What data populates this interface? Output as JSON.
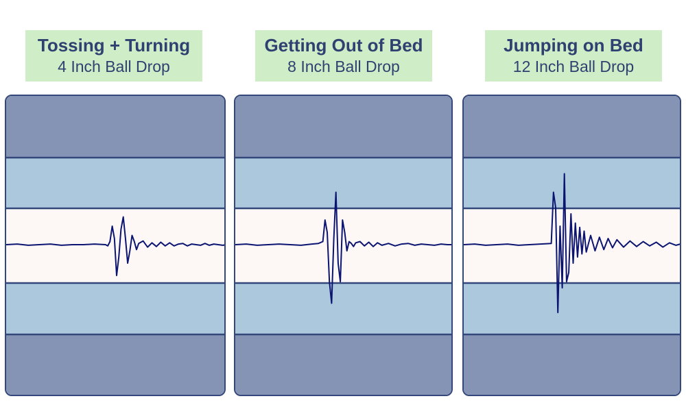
{
  "colors": {
    "outer_band": "#8593b5",
    "middle_band": "#abc8dd",
    "center_band": "#fdf8f6",
    "border": "#33477a",
    "trace": "#0b1470",
    "label_bg": "#cfeec8",
    "label_text": "#2f4170"
  },
  "chart_data": [
    {
      "type": "line",
      "title": "Tossing + Turning",
      "subtitle": "4 Inch Ball Drop",
      "ylim": [
        -1,
        1
      ],
      "series": [
        {
          "x": [
            0.0,
            0.05,
            0.1,
            0.15,
            0.2,
            0.25,
            0.3,
            0.35,
            0.4,
            0.45,
            0.46,
            0.47,
            0.48,
            0.49,
            0.5,
            0.51,
            0.52,
            0.53,
            0.54,
            0.55,
            0.56,
            0.57,
            0.58,
            0.59,
            0.6,
            0.62,
            0.64,
            0.66,
            0.68,
            0.7,
            0.72,
            0.74,
            0.76,
            0.78,
            0.8,
            0.82,
            0.84,
            0.86,
            0.88,
            0.9,
            0.92,
            0.94,
            0.96,
            0.98,
            1.0
          ],
          "y": [
            0.0,
            0.01,
            -0.01,
            0.0,
            0.01,
            -0.01,
            0.0,
            0.0,
            0.01,
            0.0,
            -0.02,
            0.05,
            0.3,
            0.1,
            -0.5,
            -0.2,
            0.25,
            0.45,
            0.1,
            -0.3,
            -0.1,
            0.15,
            0.05,
            -0.08,
            0.02,
            0.06,
            -0.04,
            0.03,
            -0.03,
            0.04,
            -0.02,
            0.03,
            -0.02,
            0.01,
            0.02,
            -0.02,
            0.01,
            0.0,
            -0.01,
            0.02,
            -0.01,
            0.01,
            0.0,
            -0.01,
            0.0
          ]
        }
      ]
    },
    {
      "type": "line",
      "title": "Getting Out of Bed",
      "subtitle": "8 Inch Ball Drop",
      "ylim": [
        -1,
        1
      ],
      "series": [
        {
          "x": [
            0.0,
            0.05,
            0.1,
            0.15,
            0.2,
            0.25,
            0.3,
            0.35,
            0.38,
            0.4,
            0.41,
            0.42,
            0.43,
            0.44,
            0.45,
            0.46,
            0.47,
            0.48,
            0.49,
            0.5,
            0.51,
            0.52,
            0.53,
            0.54,
            0.55,
            0.57,
            0.59,
            0.61,
            0.63,
            0.65,
            0.67,
            0.7,
            0.73,
            0.76,
            0.79,
            0.82,
            0.85,
            0.88,
            0.91,
            0.94,
            0.97,
            1.0
          ],
          "y": [
            0.0,
            0.01,
            -0.01,
            0.0,
            0.01,
            0.0,
            -0.01,
            0.01,
            0.02,
            0.05,
            0.4,
            0.2,
            -0.6,
            -0.95,
            0.1,
            0.85,
            -0.3,
            -0.6,
            0.4,
            0.2,
            -0.1,
            0.05,
            0.02,
            -0.03,
            0.03,
            0.05,
            -0.02,
            0.04,
            -0.03,
            0.03,
            -0.01,
            0.02,
            -0.02,
            0.01,
            0.02,
            -0.01,
            0.01,
            0.0,
            -0.01,
            0.01,
            0.0,
            0.0
          ]
        }
      ]
    },
    {
      "type": "line",
      "title": "Jumping on Bed",
      "subtitle": "12 Inch Ball Drop",
      "ylim": [
        -1,
        1
      ],
      "series": [
        {
          "x": [
            0.0,
            0.05,
            0.1,
            0.15,
            0.2,
            0.25,
            0.3,
            0.35,
            0.4,
            0.41,
            0.42,
            0.43,
            0.44,
            0.45,
            0.46,
            0.47,
            0.48,
            0.49,
            0.5,
            0.51,
            0.52,
            0.53,
            0.54,
            0.55,
            0.56,
            0.58,
            0.6,
            0.62,
            0.64,
            0.66,
            0.68,
            0.7,
            0.73,
            0.76,
            0.79,
            0.82,
            0.85,
            0.88,
            0.91,
            0.94,
            0.97,
            1.0
          ],
          "y": [
            0.0,
            0.01,
            -0.01,
            0.0,
            0.01,
            -0.01,
            0.0,
            0.01,
            0.02,
            0.85,
            0.6,
            -1.1,
            0.3,
            -0.7,
            1.15,
            -0.6,
            -0.45,
            0.5,
            -0.3,
            0.35,
            -0.2,
            0.28,
            -0.15,
            0.22,
            -0.12,
            0.15,
            -0.1,
            0.12,
            -0.08,
            0.1,
            -0.05,
            0.08,
            -0.04,
            0.06,
            -0.03,
            0.05,
            -0.02,
            0.04,
            -0.04,
            0.03,
            -0.01,
            0.02
          ]
        }
      ]
    }
  ]
}
